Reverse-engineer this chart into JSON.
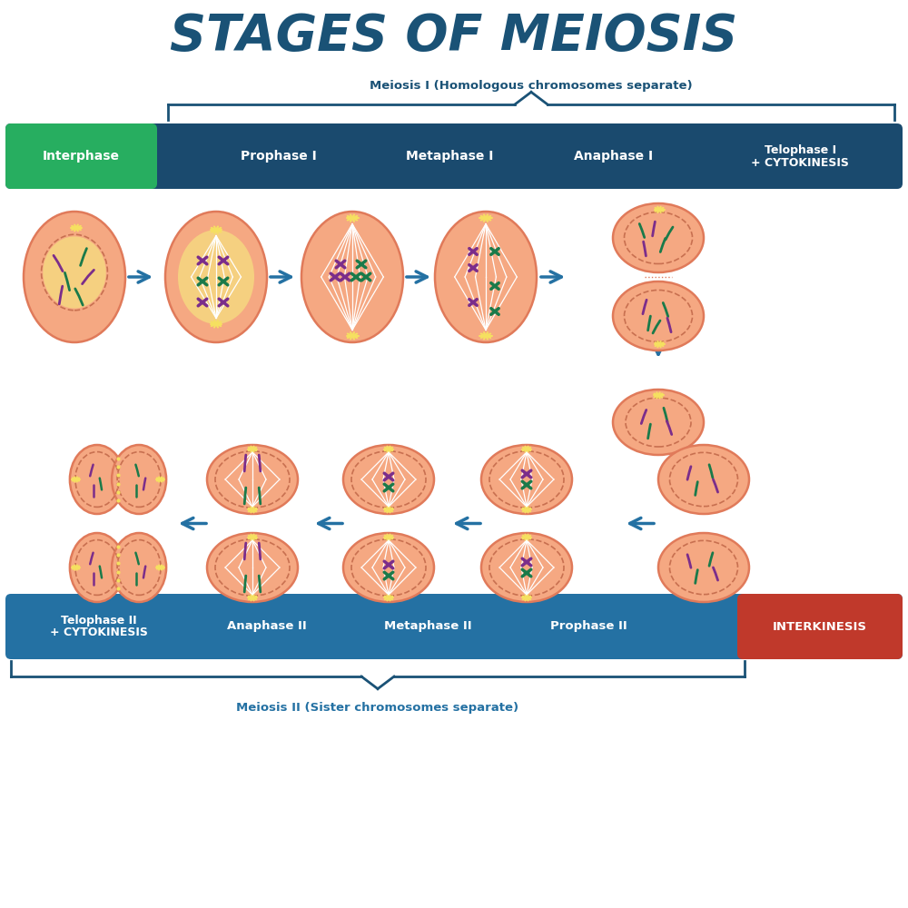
{
  "title": "STAGES OF MEIOSIS",
  "title_color": "#1a5276",
  "bg_color": "#ffffff",
  "meiosis1_label": "Meiosis I (Homologous chromosomes separate)",
  "meiosis2_label": "Meiosis II (Sister chromosomes separate)",
  "row1_stages": [
    "Interphase",
    "Prophase I",
    "Metaphase I",
    "Anaphase I",
    "Telophase I\n+ CYTOKINESIS"
  ],
  "row2_stages": [
    "Telophase II\n+ CYTOKINESIS",
    "Anaphase II",
    "Metaphase II",
    "Prophase II",
    "INTERKINESIS"
  ],
  "interphase_color": "#27ae60",
  "bar1_color": "#1a4a6e",
  "bar2_color": "#2471a3",
  "interkinesis_color": "#c0392b",
  "cell_fill": "#f5a882",
  "cell_outline": "#e07a5a",
  "cell_fill2": "#f0956c",
  "nucleus_fill": "#f5d080",
  "arrow_color": "#2471a3",
  "label_color": "#2471a3",
  "chr_purple": "#7b2d8b",
  "chr_green": "#1a7a4a",
  "dashed_color": "#c87050",
  "star_color": "#f5e060",
  "spindle_color": "#ffffff"
}
